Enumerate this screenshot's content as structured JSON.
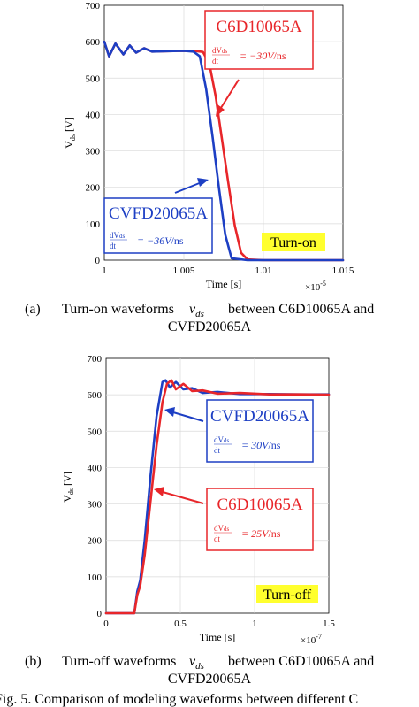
{
  "chart_data": [
    {
      "type": "line",
      "xlabel": "Time [s]",
      "ylabel": "V_ds [V]",
      "x_exponent": "×10^-5",
      "xlim": [
        1.0,
        1.015
      ],
      "ylim": [
        0,
        700
      ],
      "xticks": [
        "1",
        "1.005",
        "1.01",
        "1.015"
      ],
      "yticks": [
        "0",
        "100",
        "200",
        "300",
        "400",
        "500",
        "600",
        "700"
      ],
      "grid": true,
      "badge": "Turn-on",
      "series": [
        {
          "name": "C6D10065A",
          "color": "#e8262a",
          "x": [
            0.9997,
            1.0003,
            1.0007,
            1.0012,
            1.0016,
            1.002,
            1.0025,
            1.003,
            1.004,
            1.005,
            1.0058,
            1.0062,
            1.0066,
            1.007,
            1.0074,
            1.0078,
            1.0082,
            1.0086,
            1.009,
            1.01,
            1.012,
            1.015
          ],
          "y": [
            600,
            560,
            595,
            565,
            590,
            570,
            582,
            573,
            574,
            575,
            574,
            572,
            540,
            450,
            330,
            210,
            95,
            20,
            2,
            0,
            0,
            0
          ]
        },
        {
          "name": "CVFD20065A",
          "color": "#1d3fc4",
          "x": [
            0.9997,
            1.0003,
            1.0007,
            1.0012,
            1.0016,
            1.002,
            1.0025,
            1.003,
            1.004,
            1.005,
            1.0056,
            1.006,
            1.0064,
            1.0068,
            1.0072,
            1.0076,
            1.008,
            1.009,
            1.01,
            1.012,
            1.015
          ],
          "y": [
            600,
            560,
            595,
            565,
            590,
            570,
            582,
            573,
            574,
            575,
            573,
            560,
            470,
            340,
            200,
            70,
            5,
            0,
            0,
            0,
            0
          ]
        }
      ],
      "annotations": [
        {
          "device": "C6D10065A",
          "equation": "dVds/dt = −30V/ns",
          "color": "#e8262a"
        },
        {
          "device": "CVFD20065A",
          "equation": "dVds/dt = −36V/ns",
          "color": "#1d3fc4"
        }
      ]
    },
    {
      "type": "line",
      "xlabel": "Time [s]",
      "ylabel": "V_ds [V]",
      "x_exponent": "×10^-7",
      "xlim": [
        0,
        1.5
      ],
      "ylim": [
        0,
        700
      ],
      "xticks": [
        "0",
        "0.5",
        "1",
        "1.5"
      ],
      "yticks": [
        "0",
        "100",
        "200",
        "300",
        "400",
        "500",
        "600",
        "700"
      ],
      "grid": true,
      "badge": "Turn-off",
      "series": [
        {
          "name": "CVFD20065A",
          "color": "#1d3fc4",
          "x": [
            0,
            0.19,
            0.21,
            0.23,
            0.26,
            0.3,
            0.34,
            0.38,
            0.4,
            0.43,
            0.47,
            0.52,
            0.58,
            0.65,
            0.75,
            0.9,
            1.1,
            1.3,
            1.5
          ],
          "y": [
            0,
            0,
            60,
            90,
            200,
            380,
            540,
            635,
            640,
            620,
            635,
            615,
            618,
            605,
            608,
            602,
            602,
            601,
            601
          ]
        },
        {
          "name": "C6D10065A",
          "color": "#e8262a",
          "x": [
            0,
            0.19,
            0.21,
            0.23,
            0.26,
            0.3,
            0.34,
            0.38,
            0.41,
            0.44,
            0.47,
            0.52,
            0.58,
            0.65,
            0.75,
            0.9,
            1.1,
            1.3,
            1.5
          ],
          "y": [
            0,
            0,
            50,
            75,
            160,
            310,
            460,
            580,
            630,
            640,
            615,
            630,
            610,
            612,
            603,
            605,
            601,
            601,
            600
          ]
        }
      ],
      "annotations": [
        {
          "device": "CVFD20065A",
          "equation": "dVds/dt = 30V/ns",
          "color": "#1d3fc4"
        },
        {
          "device": "C6D10065A",
          "equation": "dVds/dt = 25V/ns",
          "color": "#e8262a"
        }
      ]
    }
  ],
  "captions": {
    "a_label": "(a)",
    "a_line1": "Turn-on waveforms",
    "a_var": "v",
    "a_var_sub": "ds",
    "a_line1b": "between C6D10065A and",
    "a_line2": "CVFD20065A",
    "b_label": "(b)",
    "b_line1": "Turn-off waveforms",
    "b_var": "v",
    "b_var_sub": "ds",
    "b_line1b": "between C6D10065A and",
    "b_line2": "CVFD20065A",
    "fig": "Fig. 5.    Comparison of modeling waveforms between different  C"
  }
}
